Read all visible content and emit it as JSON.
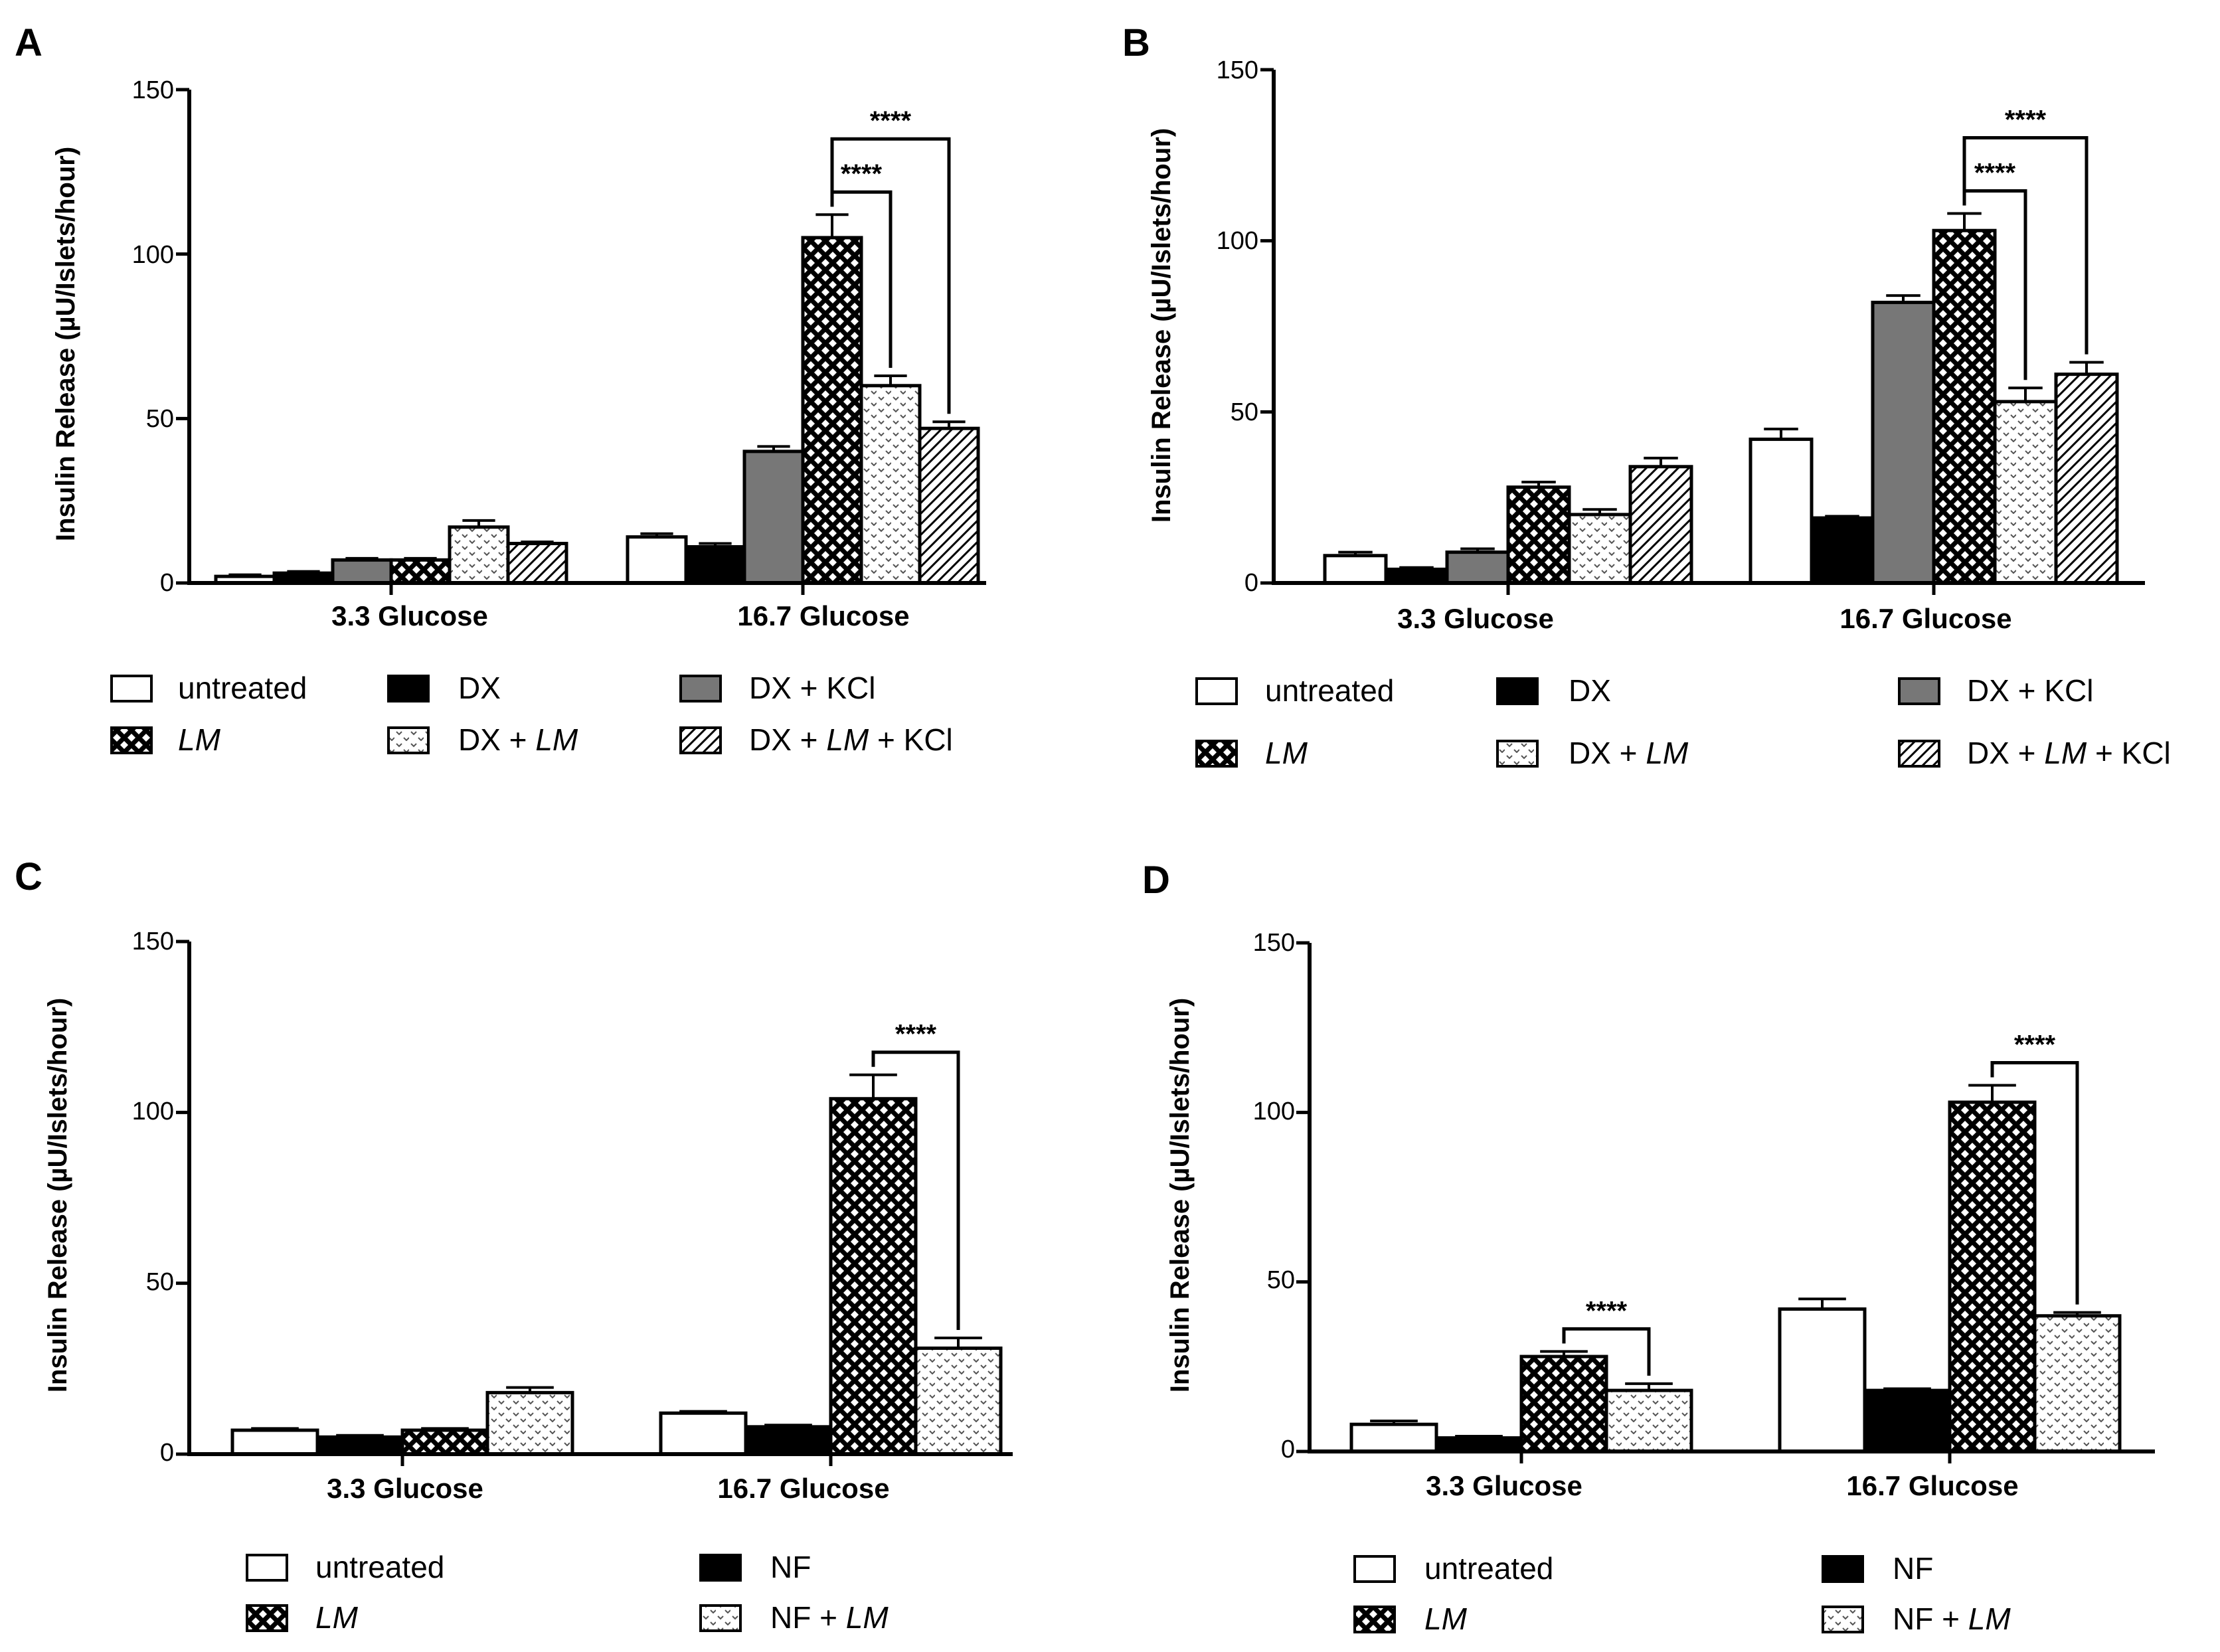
{
  "figure": {
    "panels": [
      "A",
      "B",
      "C",
      "D"
    ]
  },
  "chart_data": [
    {
      "panel": "A",
      "type": "bar",
      "ylabel": "Insulin Release (µU/Islets/hour)",
      "ylim": [
        0,
        150
      ],
      "yticks": [
        "0",
        "50",
        "100",
        "150"
      ],
      "categories": [
        "3.3 Glucose",
        "16.7 Glucose"
      ],
      "series": [
        {
          "name": "untreated",
          "italic": "",
          "pattern": "white",
          "values": [
            2,
            14
          ],
          "errors": [
            0.5,
            1
          ]
        },
        {
          "name": "DX",
          "italic": "",
          "pattern": "black",
          "values": [
            3,
            11
          ],
          "errors": [
            0.5,
            1
          ]
        },
        {
          "name": "DX + KCl",
          "italic": "",
          "pattern": "gray",
          "values": [
            7,
            40
          ],
          "errors": [
            0.5,
            1.5
          ]
        },
        {
          "name": "",
          "italic": "LM",
          "pattern": "cross",
          "values": [
            7,
            105
          ],
          "errors": [
            0.5,
            7
          ]
        },
        {
          "name": "DX + ",
          "italic": "LM",
          "pattern": "dots",
          "values": [
            17,
            60
          ],
          "errors": [
            2,
            3
          ]
        },
        {
          "name": "DX + ",
          "italic": "LM",
          "suffix": " + KCl",
          "pattern": "hatch",
          "values": [
            12,
            47
          ],
          "errors": [
            0.5,
            2
          ]
        }
      ],
      "significance": [
        {
          "label": "****",
          "from_series": 3,
          "to_series": 4,
          "group": 1
        },
        {
          "label": "****",
          "from_series": 3,
          "to_series": 5,
          "group": 1
        }
      ]
    },
    {
      "panel": "B",
      "type": "bar",
      "ylabel": "Insulin Release (µU/Islets/hour)",
      "ylim": [
        0,
        150
      ],
      "yticks": [
        "0",
        "50",
        "100",
        "150"
      ],
      "categories": [
        "3.3 Glucose",
        "16.7 Glucose"
      ],
      "series": [
        {
          "name": "untreated",
          "italic": "",
          "pattern": "white",
          "values": [
            8,
            42
          ],
          "errors": [
            1,
            3
          ]
        },
        {
          "name": "DX",
          "italic": "",
          "pattern": "black",
          "values": [
            4,
            19
          ],
          "errors": [
            0.5,
            0.5
          ]
        },
        {
          "name": "DX + KCl",
          "italic": "",
          "pattern": "gray",
          "values": [
            9,
            82
          ],
          "errors": [
            1,
            2
          ]
        },
        {
          "name": "",
          "italic": "LM",
          "pattern": "cross",
          "values": [
            28,
            103
          ],
          "errors": [
            1.5,
            5
          ]
        },
        {
          "name": "DX + ",
          "italic": "LM",
          "pattern": "dots",
          "values": [
            20,
            53
          ],
          "errors": [
            1.5,
            4
          ]
        },
        {
          "name": "DX + ",
          "italic": "LM",
          "suffix": " + KCl",
          "pattern": "hatch",
          "values": [
            34,
            61
          ],
          "errors": [
            2.5,
            3.5
          ]
        }
      ],
      "significance": [
        {
          "label": "****",
          "from_series": 3,
          "to_series": 4,
          "group": 1
        },
        {
          "label": "****",
          "from_series": 3,
          "to_series": 5,
          "group": 1
        }
      ]
    },
    {
      "panel": "C",
      "type": "bar",
      "ylabel": "Insulin Release (µU/Islets/hour)",
      "ylim": [
        0,
        150
      ],
      "yticks": [
        "0",
        "50",
        "100",
        "150"
      ],
      "categories": [
        "3.3 Glucose",
        "16.7 Glucose"
      ],
      "series": [
        {
          "name": "untreated",
          "italic": "",
          "pattern": "white",
          "values": [
            7,
            12
          ],
          "errors": [
            0.5,
            0.5
          ]
        },
        {
          "name": "NF",
          "italic": "",
          "pattern": "black",
          "values": [
            5,
            8
          ],
          "errors": [
            0.5,
            0.5
          ]
        },
        {
          "name": "",
          "italic": "LM",
          "pattern": "cross",
          "values": [
            7,
            104
          ],
          "errors": [
            0.5,
            7
          ]
        },
        {
          "name": "NF + ",
          "italic": "LM",
          "pattern": "dots",
          "values": [
            18,
            31
          ],
          "errors": [
            1.5,
            3
          ]
        }
      ],
      "significance": [
        {
          "label": "****",
          "from_series": 2,
          "to_series": 3,
          "group": 1
        }
      ]
    },
    {
      "panel": "D",
      "type": "bar",
      "ylabel": "Insulin Release (µU/Islets/hour)",
      "ylim": [
        0,
        150
      ],
      "yticks": [
        "0",
        "50",
        "100",
        "150"
      ],
      "categories": [
        "3.3 Glucose",
        "16.7 Glucose"
      ],
      "series": [
        {
          "name": "untreated",
          "italic": "",
          "pattern": "white",
          "values": [
            8,
            42
          ],
          "errors": [
            1,
            3
          ]
        },
        {
          "name": "NF",
          "italic": "",
          "pattern": "black",
          "values": [
            4,
            18
          ],
          "errors": [
            0.5,
            0.5
          ]
        },
        {
          "name": "",
          "italic": "LM",
          "pattern": "cross",
          "values": [
            28,
            103
          ],
          "errors": [
            1.5,
            5
          ]
        },
        {
          "name": "NF + ",
          "italic": "LM",
          "pattern": "dots",
          "values": [
            18,
            40
          ],
          "errors": [
            2,
            1
          ]
        }
      ],
      "significance": [
        {
          "label": "****",
          "from_series": 2,
          "to_series": 3,
          "group": 0
        },
        {
          "label": "****",
          "from_series": 2,
          "to_series": 3,
          "group": 1
        }
      ]
    }
  ]
}
